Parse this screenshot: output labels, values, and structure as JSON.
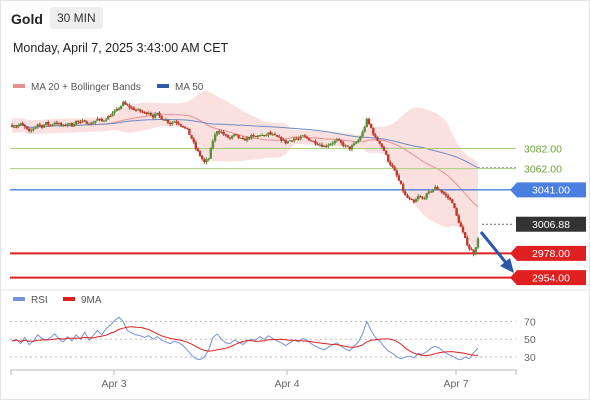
{
  "header": {
    "title": "Gold",
    "timeframe": "30 MIN",
    "timestamp": "Monday, April 7, 2025 3:43:00 AM CET"
  },
  "legend": {
    "ma20_bb": "MA 20 + Bollinger Bands",
    "ma50": "MA 50",
    "rsi": "RSI",
    "rsi_ma": "9MA"
  },
  "colors": {
    "up": "#5a8f3e",
    "down": "#c0392b",
    "bollinger": "#f9d6d6",
    "ma20": "#e88f8f",
    "ma50": "#6c8bc4",
    "resistance": "#a8cf7f",
    "resistance_text": "#6aa33a",
    "pivot": "#4a7fe0",
    "support": "#e02020",
    "current": "#333333",
    "arrow": "#2a57a6",
    "rsi_line": "#7593d8",
    "rsi_ma": "#e02020"
  },
  "chart_data": {
    "type": "candlestick",
    "price_range": [
      2950,
      3135
    ],
    "x_ticks": [
      "Apr 3",
      "Apr 4",
      "Apr 7"
    ],
    "levels": [
      {
        "name": "resistance-2",
        "value": 3082.0,
        "label": "3082.00",
        "kind": "resistance"
      },
      {
        "name": "resistance-1",
        "value": 3062.0,
        "label": "3062.00",
        "kind": "resistance"
      },
      {
        "name": "pivot",
        "value": 3041.0,
        "label": "3041.00",
        "kind": "pivot"
      },
      {
        "name": "current",
        "value": 3006.88,
        "label": "3006.88",
        "kind": "current"
      },
      {
        "name": "support-1",
        "value": 2978.0,
        "label": "2978.00",
        "kind": "support"
      },
      {
        "name": "support-2",
        "value": 2954.0,
        "label": "2954.00",
        "kind": "support"
      }
    ],
    "price_path": [
      3105,
      3104,
      3106,
      3103,
      3098,
      3102,
      3106,
      3104,
      3107,
      3105,
      3108,
      3106,
      3104,
      3107,
      3105,
      3109,
      3107,
      3110,
      3106,
      3108,
      3111,
      3109,
      3112,
      3115,
      3118,
      3122,
      3127,
      3124,
      3122,
      3120,
      3119,
      3117,
      3118,
      3114,
      3116,
      3112,
      3110,
      3107,
      3109,
      3107,
      3104,
      3100,
      3092,
      3082,
      3075,
      3068,
      3072,
      3090,
      3100,
      3098,
      3094,
      3092,
      3095,
      3093,
      3090,
      3092,
      3094,
      3093,
      3096,
      3094,
      3097,
      3095,
      3093,
      3091,
      3088,
      3090,
      3092,
      3091,
      3094,
      3092,
      3090,
      3088,
      3086,
      3084,
      3086,
      3088,
      3090,
      3087,
      3084,
      3082,
      3086,
      3090,
      3098,
      3110,
      3102,
      3092,
      3088,
      3080,
      3070,
      3063,
      3055,
      3045,
      3035,
      3031,
      3028,
      3034,
      3032,
      3036,
      3040,
      3043,
      3041,
      3037,
      3033,
      3029,
      3015,
      3004,
      2992,
      2983,
      2978,
      2992
    ],
    "rsi": {
      "ticks": [
        70,
        50,
        30
      ],
      "range": [
        20,
        80
      ],
      "values": [
        48,
        50,
        45,
        52,
        44,
        48,
        55,
        51,
        49,
        52,
        56,
        50,
        47,
        53,
        48,
        55,
        50,
        58,
        49,
        54,
        60,
        55,
        62,
        66,
        71,
        75,
        70,
        60,
        57,
        55,
        54,
        52,
        54,
        50,
        53,
        49,
        47,
        45,
        48,
        46,
        43,
        38,
        32,
        28,
        27,
        30,
        38,
        52,
        56,
        50,
        46,
        45,
        49,
        47,
        44,
        48,
        50,
        49,
        53,
        50,
        54,
        51,
        48,
        46,
        43,
        46,
        49,
        47,
        51,
        49,
        45,
        42,
        40,
        38,
        41,
        44,
        46,
        42,
        39,
        37,
        42,
        47,
        56,
        70,
        60,
        52,
        48,
        42,
        37,
        34,
        30,
        28,
        30,
        31,
        29,
        34,
        33,
        36,
        40,
        42,
        40,
        36,
        33,
        31,
        28,
        27,
        30,
        28,
        35,
        40
      ]
    }
  }
}
